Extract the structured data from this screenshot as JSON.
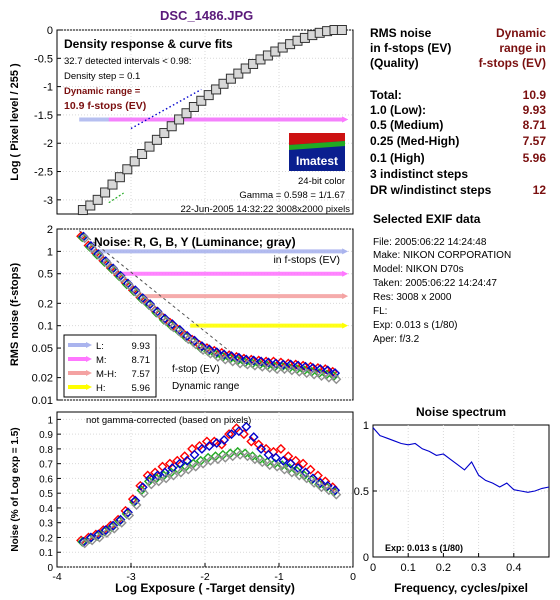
{
  "file_title": "DSC_1486.JPG",
  "right_panel": {
    "col_header_left": [
      "RMS noise",
      "in f-stops (EV)",
      "(Quality)"
    ],
    "col_header_right": [
      "Dynamic",
      "range in",
      "f-stops (EV)"
    ],
    "rows": [
      {
        "label": "Total:",
        "value": "10.9"
      },
      {
        "label": "1.0   (Low):",
        "value": "9.93"
      },
      {
        "label": "0.5   (Medium)",
        "value": "8.71"
      },
      {
        "label": "0.25 (Med-High)",
        "value": "7.57"
      },
      {
        "label": "0.1   (High)",
        "value": "5.96"
      },
      {
        "label": "3 indistinct steps",
        "value": ""
      },
      {
        "label": "DR w/indistinct steps",
        "value": "12"
      }
    ],
    "exif_title": "Selected EXIF data",
    "exif": [
      "File:   2005:06:22 14:24:48",
      "Make:  NIKON CORPORATION",
      "Model: NIKON D70s",
      "Taken: 2005:06:22 14:24:47",
      "Res:    3008 x 2000",
      "FL:",
      "Exp:    0.013 s   (1/80)",
      "Aper:  f/3.2"
    ]
  },
  "panel1_text": {
    "title": "Density response & curve fits",
    "line1": "32.7 detected intervals < 0.98:",
    "line2": "Density step = 0.1",
    "line3": "Dynamic range =",
    "line4": "10.9 f-stops (EV)",
    "logo": "Imatest",
    "bitcolor": "24-bit color",
    "gamma": "Gamma = 0.598 = 1/1.67",
    "footer": "22-Jun-2005 14:32:22   3008x2000 pixels"
  },
  "panel2_text": {
    "title": "Noise: R, G, B, Y (Luminance; gray)",
    "subtitle": "in f-stops (EV)",
    "fstop": "f-stop (EV)",
    "dynrange": "Dynamic range"
  },
  "panel3_text": {
    "note": "not gamma-corrected (based on pixels)"
  },
  "panel4_text": {
    "title": "Noise spectrum",
    "exp_label": "Exp:  0.013 s  (1/80)"
  },
  "colors": {
    "title": "#5a1a7a",
    "darkred": "#7a0f0f",
    "red": "#ff0000",
    "green": "#22aa22",
    "blue": "#0000cc",
    "gray": "#909090",
    "L": "#aab4ee",
    "M": "#ff77ff",
    "MH": "#f4a2a2",
    "H": "#ffff00"
  },
  "chart_data": [
    {
      "type": "scatter",
      "id": "density_response",
      "title": "Density response & curve fits",
      "xlabel": "Log Exposure ( -Target density)",
      "ylabel": "Log ( Pixel level / 255 )",
      "xlim": [
        -4,
        0
      ],
      "ylim": [
        -3.25,
        0
      ],
      "yticks": [
        0,
        -0.5,
        -1,
        -1.5,
        -2,
        -2.5,
        -3
      ],
      "ytick_labels": [
        "0",
        "-0.5",
        "-1",
        "-1.5",
        "-2",
        "-2.5",
        "-3"
      ],
      "x": [
        -3.65,
        -3.55,
        -3.45,
        -3.35,
        -3.25,
        -3.15,
        -3.05,
        -2.95,
        -2.85,
        -2.75,
        -2.65,
        -2.55,
        -2.45,
        -2.35,
        -2.25,
        -2.15,
        -2.05,
        -1.95,
        -1.85,
        -1.75,
        -1.65,
        -1.55,
        -1.45,
        -1.35,
        -1.25,
        -1.15,
        -1.05,
        -0.95,
        -0.85,
        -0.75,
        -0.65,
        -0.55,
        -0.45,
        -0.35,
        -0.25,
        -0.15
      ],
      "y": [
        -3.18,
        -3.1,
        -3.0,
        -2.87,
        -2.73,
        -2.6,
        -2.46,
        -2.32,
        -2.19,
        -2.06,
        -1.94,
        -1.82,
        -1.7,
        -1.58,
        -1.47,
        -1.36,
        -1.25,
        -1.15,
        -1.05,
        -0.95,
        -0.86,
        -0.77,
        -0.68,
        -0.6,
        -0.52,
        -0.45,
        -0.38,
        -0.31,
        -0.25,
        -0.19,
        -0.14,
        -0.09,
        -0.05,
        -0.02,
        0.0,
        0.0
      ],
      "dynamic_range_bars": [
        {
          "name": "L",
          "y": -1.58,
          "x_start": -3.7,
          "x_end": -0.12
        },
        {
          "name": "M",
          "y": -1.58,
          "x_start": -3.3,
          "x_end": -0.12
        }
      ],
      "fit_line_blue": {
        "x": [
          -3.0,
          -2.05
        ],
        "y": [
          -1.74,
          -1.05
        ]
      },
      "fit_line_green": {
        "x": [
          -3.3,
          -3.1
        ],
        "y": [
          -3.05,
          -2.88
        ]
      }
    },
    {
      "type": "scatter",
      "id": "noise_fstops",
      "title": "Noise: R, G, B, Y (Luminance; gray)",
      "ylabel": "RMS noise (f-stops)",
      "yscale": "log",
      "ylim": [
        0.01,
        2.0
      ],
      "yticks": [
        2,
        1,
        0.5,
        0.2,
        0.1,
        0.05,
        0.02,
        0.01
      ],
      "ytick_labels": [
        "2",
        "1",
        "0.5",
        "0.2",
        "0.1",
        "0.05",
        "0.02",
        "0.01"
      ],
      "xlim": [
        -4,
        0
      ],
      "x": [
        -3.65,
        -3.55,
        -3.45,
        -3.35,
        -3.25,
        -3.15,
        -3.05,
        -2.95,
        -2.85,
        -2.75,
        -2.65,
        -2.55,
        -2.45,
        -2.35,
        -2.25,
        -2.15,
        -2.05,
        -1.95,
        -1.85,
        -1.75,
        -1.65,
        -1.55,
        -1.45,
        -1.35,
        -1.25,
        -1.15,
        -1.05,
        -0.95,
        -0.85,
        -0.75,
        -0.65,
        -0.55,
        -0.45,
        -0.35,
        -0.25
      ],
      "series": [
        {
          "name": "R",
          "values": [
            1.6,
            1.2,
            0.95,
            0.75,
            0.6,
            0.48,
            0.38,
            0.3,
            0.24,
            0.2,
            0.16,
            0.13,
            0.11,
            0.09,
            0.075,
            0.065,
            0.055,
            0.05,
            0.046,
            0.043,
            0.04,
            0.038,
            0.036,
            0.035,
            0.034,
            0.033,
            0.033,
            0.032,
            0.031,
            0.03,
            0.029,
            0.028,
            0.027,
            0.026,
            0.024
          ]
        },
        {
          "name": "G",
          "values": [
            1.55,
            1.15,
            0.9,
            0.72,
            0.58,
            0.46,
            0.36,
            0.29,
            0.23,
            0.19,
            0.15,
            0.12,
            0.1,
            0.085,
            0.07,
            0.06,
            0.05,
            0.045,
            0.041,
            0.038,
            0.036,
            0.034,
            0.032,
            0.031,
            0.03,
            0.029,
            0.028,
            0.028,
            0.027,
            0.026,
            0.025,
            0.024,
            0.023,
            0.022,
            0.021
          ]
        },
        {
          "name": "B",
          "values": [
            1.58,
            1.18,
            0.92,
            0.74,
            0.59,
            0.47,
            0.37,
            0.3,
            0.235,
            0.195,
            0.155,
            0.125,
            0.105,
            0.088,
            0.073,
            0.063,
            0.053,
            0.048,
            0.044,
            0.041,
            0.039,
            0.037,
            0.035,
            0.034,
            0.033,
            0.032,
            0.031,
            0.03,
            0.03,
            0.029,
            0.028,
            0.027,
            0.026,
            0.025,
            0.023
          ]
        },
        {
          "name": "Y",
          "values": [
            1.5,
            1.1,
            0.88,
            0.7,
            0.56,
            0.44,
            0.35,
            0.28,
            0.22,
            0.18,
            0.145,
            0.115,
            0.095,
            0.08,
            0.066,
            0.056,
            0.047,
            0.042,
            0.038,
            0.035,
            0.033,
            0.031,
            0.03,
            0.029,
            0.028,
            0.027,
            0.026,
            0.026,
            0.025,
            0.024,
            0.023,
            0.022,
            0.021,
            0.02,
            0.019
          ]
        }
      ],
      "threshold_lines": [
        {
          "name": "L",
          "value": 1.0,
          "x_start": -3.55,
          "x_end": -0.12
        },
        {
          "name": "M",
          "value": 0.5,
          "x_start": -3.2,
          "x_end": -0.12
        },
        {
          "name": "M-H",
          "value": 0.25,
          "x_start": -2.85,
          "x_end": -0.12
        },
        {
          "name": "H",
          "value": 0.1,
          "x_start": -2.2,
          "x_end": -0.12
        }
      ],
      "legend": [
        {
          "name": "L:",
          "value": "9.93"
        },
        {
          "name": "M:",
          "value": "8.71"
        },
        {
          "name": "M-H:",
          "value": "7.57"
        },
        {
          "name": "H:",
          "value": "5.96"
        }
      ],
      "legend_position": "bottom-left"
    },
    {
      "type": "scatter",
      "id": "noise_percent",
      "xlabel": "Log Exposure ( -Target density)",
      "ylabel": "Noise (% of Log exp = 1.5)",
      "xlim": [
        -4,
        0
      ],
      "xticks": [
        -4,
        -3,
        -2,
        -1,
        0
      ],
      "xtick_labels": [
        "-4",
        "-3",
        "-2",
        "-1",
        "0"
      ],
      "ylim": [
        0,
        1.05
      ],
      "yticks": [
        0,
        0.1,
        0.2,
        0.3,
        0.4,
        0.5,
        0.6,
        0.7,
        0.8,
        0.9,
        1
      ],
      "ytick_labels": [
        "0",
        "0.1",
        "0.2",
        "0.3",
        "0.4",
        "0.5",
        "0.6",
        "0.7",
        "0.8",
        "0.9",
        "1"
      ],
      "x": [
        -3.65,
        -3.55,
        -3.45,
        -3.35,
        -3.25,
        -3.15,
        -3.05,
        -2.95,
        -2.85,
        -2.75,
        -2.65,
        -2.55,
        -2.45,
        -2.35,
        -2.25,
        -2.15,
        -2.05,
        -1.95,
        -1.85,
        -1.75,
        -1.65,
        -1.55,
        -1.45,
        -1.35,
        -1.25,
        -1.15,
        -1.05,
        -0.95,
        -0.85,
        -0.75,
        -0.65,
        -0.55,
        -0.45,
        -0.35,
        -0.25
      ],
      "series": [
        {
          "name": "R",
          "values": [
            0.18,
            0.2,
            0.22,
            0.25,
            0.28,
            0.32,
            0.38,
            0.46,
            0.55,
            0.62,
            0.64,
            0.68,
            0.7,
            0.72,
            0.75,
            0.8,
            0.82,
            0.85,
            0.85,
            0.83,
            0.9,
            0.94,
            0.9,
            0.85,
            0.83,
            0.8,
            0.78,
            0.8,
            0.75,
            0.72,
            0.7,
            0.66,
            0.62,
            0.58,
            0.54
          ]
        },
        {
          "name": "G",
          "values": [
            0.17,
            0.19,
            0.21,
            0.24,
            0.27,
            0.31,
            0.36,
            0.44,
            0.52,
            0.58,
            0.6,
            0.62,
            0.64,
            0.66,
            0.68,
            0.7,
            0.72,
            0.74,
            0.75,
            0.76,
            0.77,
            0.78,
            0.77,
            0.75,
            0.73,
            0.71,
            0.7,
            0.69,
            0.67,
            0.65,
            0.62,
            0.59,
            0.56,
            0.54,
            0.51
          ]
        },
        {
          "name": "B",
          "values": [
            0.17,
            0.2,
            0.22,
            0.25,
            0.28,
            0.32,
            0.37,
            0.45,
            0.54,
            0.6,
            0.62,
            0.64,
            0.67,
            0.7,
            0.72,
            0.76,
            0.8,
            0.82,
            0.84,
            0.86,
            0.9,
            0.92,
            0.95,
            0.88,
            0.8,
            0.76,
            0.74,
            0.72,
            0.7,
            0.67,
            0.64,
            0.6,
            0.57,
            0.55,
            0.52
          ]
        },
        {
          "name": "Y",
          "values": [
            0.16,
            0.18,
            0.2,
            0.23,
            0.26,
            0.3,
            0.35,
            0.42,
            0.5,
            0.56,
            0.58,
            0.6,
            0.62,
            0.64,
            0.66,
            0.68,
            0.7,
            0.72,
            0.73,
            0.74,
            0.75,
            0.76,
            0.75,
            0.73,
            0.71,
            0.69,
            0.68,
            0.66,
            0.64,
            0.62,
            0.6,
            0.57,
            0.54,
            0.52,
            0.49
          ]
        }
      ]
    },
    {
      "type": "line",
      "id": "noise_spectrum",
      "title": "Noise spectrum",
      "xlabel": "Frequency, cycles/pixel",
      "ylabel": "",
      "xlim": [
        0,
        0.5
      ],
      "xticks": [
        0,
        0.1,
        0.2,
        0.3,
        0.4
      ],
      "xtick_labels": [
        "0",
        "0.1",
        "0.2",
        "0.3",
        "0.4"
      ],
      "ylim": [
        0,
        1
      ],
      "yticks": [
        0,
        0.5,
        1
      ],
      "ytick_labels": [
        "0",
        "0.5",
        "1"
      ],
      "x": [
        0,
        0.02,
        0.04,
        0.06,
        0.08,
        0.1,
        0.12,
        0.14,
        0.16,
        0.18,
        0.2,
        0.22,
        0.24,
        0.26,
        0.28,
        0.3,
        0.32,
        0.34,
        0.36,
        0.38,
        0.4,
        0.42,
        0.44,
        0.46,
        0.48,
        0.5
      ],
      "y": [
        0.98,
        0.92,
        0.9,
        0.88,
        0.86,
        0.85,
        0.86,
        0.82,
        0.8,
        0.77,
        0.78,
        0.74,
        0.7,
        0.66,
        0.72,
        0.62,
        0.58,
        0.56,
        0.53,
        0.56,
        0.51,
        0.5,
        0.49,
        0.5,
        0.52,
        0.53
      ]
    }
  ]
}
